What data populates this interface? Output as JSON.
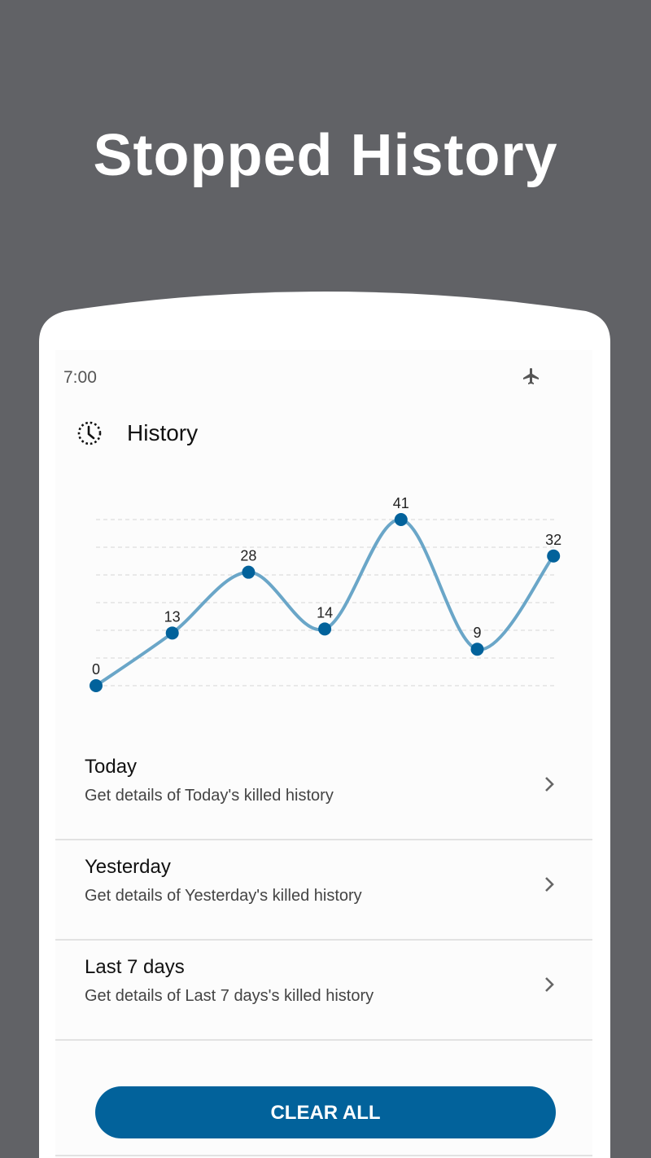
{
  "headline": "Stopped History",
  "status_bar": {
    "time": "7:00",
    "icon": "airplane-mode-icon"
  },
  "app_bar": {
    "icon": "history-clock-icon",
    "title": "History"
  },
  "colors": {
    "background": "#616266",
    "accent": "#02629b",
    "line": "#6aa6c8",
    "point": "#02629b"
  },
  "chart_data": {
    "type": "line",
    "smooth": true,
    "values": [
      0,
      13,
      28,
      14,
      41,
      9,
      32
    ],
    "data_labels": [
      "0",
      "13",
      "28",
      "14",
      "41",
      "9",
      "32"
    ],
    "ylim": [
      0,
      41
    ],
    "grid": true,
    "grid_style": "dashed"
  },
  "list": [
    {
      "title": "Today",
      "subtitle": "Get details of Today's killed history",
      "icon": "chevron-right-icon"
    },
    {
      "title": "Yesterday",
      "subtitle": "Get details of Yesterday's killed history",
      "icon": "chevron-right-icon"
    },
    {
      "title": "Last 7 days",
      "subtitle": "Get details of Last 7 days's killed history",
      "icon": "chevron-right-icon"
    }
  ],
  "clear_button": "CLEAR ALL"
}
